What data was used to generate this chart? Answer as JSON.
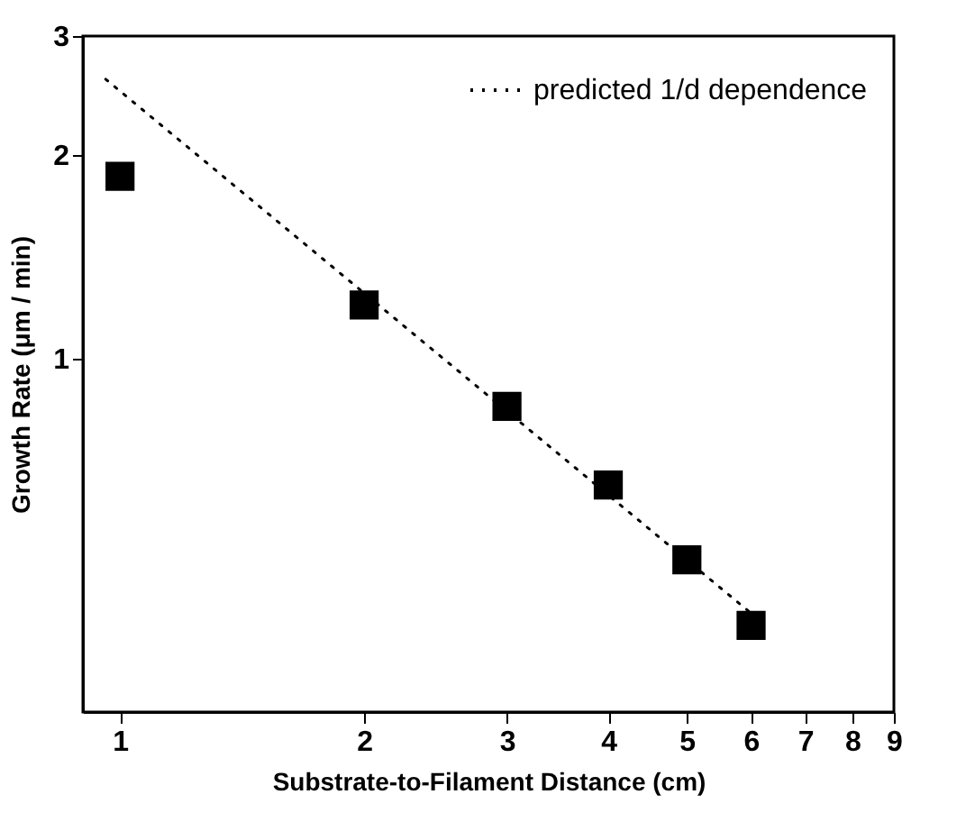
{
  "chart_data": {
    "type": "scatter",
    "xlabel": "Substrate-to-Filament Distance (cm)",
    "ylabel": "Growth Rate (μm / min)",
    "log": "xy",
    "xlim": [
      0.9,
      9
    ],
    "ylim": [
      0.3,
      3
    ],
    "xticks": [
      1,
      2,
      3,
      4,
      5,
      6,
      7,
      8,
      9
    ],
    "yticks": [
      1,
      2,
      3
    ],
    "legend": "top right",
    "grid": false,
    "series": [
      {
        "color": "#000000",
        "marker": "square",
        "x": [
          1,
          2,
          3,
          4,
          5,
          6
        ],
        "values": [
          1.86,
          1.2,
          0.85,
          0.65,
          0.504,
          0.403
        ]
      },
      {
        "name": "predicted 1/d dependence",
        "type": "line",
        "line_style": "dotted",
        "color": "#000000",
        "x": [
          0.96,
          6
        ],
        "values": [
          2.59,
          0.42
        ]
      }
    ]
  }
}
